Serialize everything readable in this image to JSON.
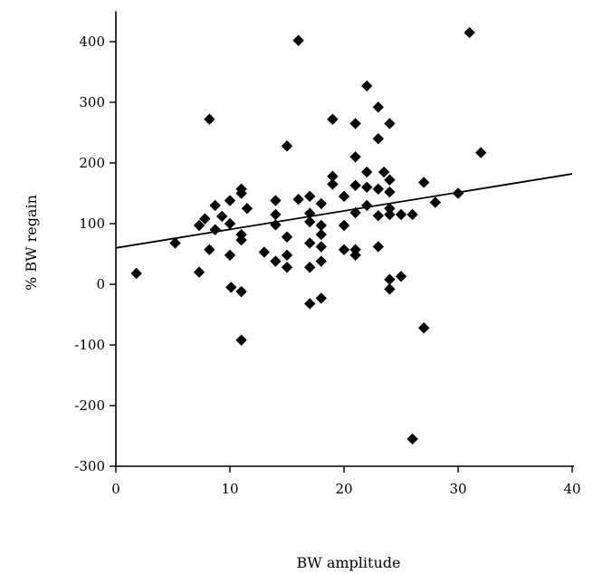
{
  "chart_data": {
    "type": "scatter",
    "title": "",
    "xlabel": "BW amplitude",
    "ylabel": "% BW regain",
    "xlim": [
      0,
      40
    ],
    "ylim": [
      -300,
      450
    ],
    "x_ticks": [
      0,
      10,
      20,
      30,
      40
    ],
    "y_ticks": [
      -300,
      -200,
      -100,
      0,
      100,
      200,
      300,
      400
    ],
    "grid": false,
    "marker": "diamond",
    "marker_color": "#000000",
    "points": [
      {
        "x": 1.8,
        "y": 18
      },
      {
        "x": 5.2,
        "y": 68
      },
      {
        "x": 7.3,
        "y": 20
      },
      {
        "x": 7.3,
        "y": 97
      },
      {
        "x": 7.8,
        "y": 108
      },
      {
        "x": 8.2,
        "y": 57
      },
      {
        "x": 8.2,
        "y": 272
      },
      {
        "x": 8.7,
        "y": 130
      },
      {
        "x": 8.7,
        "y": 90
      },
      {
        "x": 9.3,
        "y": 112
      },
      {
        "x": 10.0,
        "y": 100
      },
      {
        "x": 10.0,
        "y": 138
      },
      {
        "x": 10.0,
        "y": 48
      },
      {
        "x": 10.1,
        "y": -5
      },
      {
        "x": 11.0,
        "y": 157
      },
      {
        "x": 11.0,
        "y": 150
      },
      {
        "x": 11.0,
        "y": 82
      },
      {
        "x": 11.0,
        "y": 73
      },
      {
        "x": 11.0,
        "y": -12
      },
      {
        "x": 11.0,
        "y": -92
      },
      {
        "x": 11.5,
        "y": 125
      },
      {
        "x": 13.0,
        "y": 53
      },
      {
        "x": 14.0,
        "y": 138
      },
      {
        "x": 14.0,
        "y": 115
      },
      {
        "x": 14.0,
        "y": 98
      },
      {
        "x": 14.0,
        "y": 38
      },
      {
        "x": 15.0,
        "y": 228
      },
      {
        "x": 15.0,
        "y": 78
      },
      {
        "x": 15.0,
        "y": 48
      },
      {
        "x": 15.0,
        "y": 28
      },
      {
        "x": 16.0,
        "y": 402
      },
      {
        "x": 16.0,
        "y": 140
      },
      {
        "x": 17.0,
        "y": 145
      },
      {
        "x": 17.0,
        "y": 117
      },
      {
        "x": 17.0,
        "y": 103
      },
      {
        "x": 17.0,
        "y": 68
      },
      {
        "x": 17.0,
        "y": 28
      },
      {
        "x": 17.0,
        "y": -32
      },
      {
        "x": 18.0,
        "y": 133
      },
      {
        "x": 18.0,
        "y": 97
      },
      {
        "x": 18.0,
        "y": 82
      },
      {
        "x": 18.0,
        "y": 62
      },
      {
        "x": 18.0,
        "y": 38
      },
      {
        "x": 18.0,
        "y": -23
      },
      {
        "x": 19.0,
        "y": 272
      },
      {
        "x": 19.0,
        "y": 178
      },
      {
        "x": 19.0,
        "y": 165
      },
      {
        "x": 20.0,
        "y": 145
      },
      {
        "x": 20.0,
        "y": 97
      },
      {
        "x": 20.0,
        "y": 57
      },
      {
        "x": 21.0,
        "y": 265
      },
      {
        "x": 21.0,
        "y": 210
      },
      {
        "x": 21.0,
        "y": 163
      },
      {
        "x": 21.0,
        "y": 118
      },
      {
        "x": 21.0,
        "y": 57
      },
      {
        "x": 21.0,
        "y": 48
      },
      {
        "x": 22.0,
        "y": 327
      },
      {
        "x": 22.0,
        "y": 185
      },
      {
        "x": 22.0,
        "y": 160
      },
      {
        "x": 22.0,
        "y": 130
      },
      {
        "x": 23.0,
        "y": 292
      },
      {
        "x": 23.0,
        "y": 240
      },
      {
        "x": 23.0,
        "y": 157
      },
      {
        "x": 23.0,
        "y": 113
      },
      {
        "x": 23.0,
        "y": 62
      },
      {
        "x": 23.5,
        "y": 185
      },
      {
        "x": 24.0,
        "y": 265
      },
      {
        "x": 24.0,
        "y": 172
      },
      {
        "x": 24.0,
        "y": 152
      },
      {
        "x": 24.0,
        "y": 125
      },
      {
        "x": 24.0,
        "y": 115
      },
      {
        "x": 24.0,
        "y": 8
      },
      {
        "x": 24.0,
        "y": -8
      },
      {
        "x": 25.0,
        "y": 115
      },
      {
        "x": 25.0,
        "y": 13
      },
      {
        "x": 26.0,
        "y": 115
      },
      {
        "x": 26.0,
        "y": -255
      },
      {
        "x": 27.0,
        "y": 168
      },
      {
        "x": 27.0,
        "y": -72
      },
      {
        "x": 28.0,
        "y": 135
      },
      {
        "x": 30.0,
        "y": 150
      },
      {
        "x": 31.0,
        "y": 415
      },
      {
        "x": 32.0,
        "y": 217
      }
    ],
    "trendline": {
      "x": [
        0,
        40
      ],
      "y": [
        60,
        182
      ]
    }
  }
}
